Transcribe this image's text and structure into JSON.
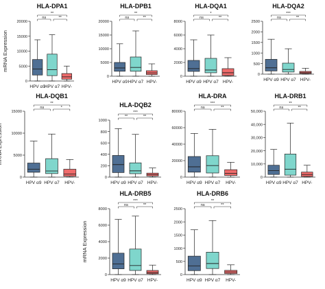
{
  "figure": {
    "y_axis_label": "mRNA Expression",
    "categories": [
      "HPV α9",
      "HPV α7",
      "HPV-"
    ],
    "colors": {
      "HPV α9": "#4f6f94",
      "HPV α7": "#7fd6cc",
      "HPV-": "#ef6b6b"
    }
  },
  "chart_data": [
    {
      "type": "box",
      "title": "HLA-DPA1",
      "ylabel": "mRNA Expression",
      "ylim": [
        0,
        20000
      ],
      "yticks": [
        "0",
        "5000",
        "10000",
        "15000",
        "20000"
      ],
      "series": [
        {
          "name": "HPV α9",
          "min": 0,
          "q1": 2000,
          "median": 4000,
          "q3": 7200,
          "max": 13800
        },
        {
          "name": "HPV α7",
          "min": 0,
          "q1": 1800,
          "median": 3800,
          "q3": 9000,
          "max": 15500
        },
        {
          "name": "HPV-",
          "min": 0,
          "q1": 600,
          "median": 1400,
          "q3": 2500,
          "max": 5000
        }
      ],
      "significance": [
        {
          "from": 0,
          "to": 1,
          "label": "ns"
        },
        {
          "from": 1,
          "to": 2,
          "label": "**"
        },
        {
          "from": 0,
          "to": 2,
          "label": "**"
        }
      ]
    },
    {
      "type": "box",
      "title": "HLA-DPB1",
      "ylim": [
        0,
        20000
      ],
      "yticks": [
        "0",
        "5000",
        "10000",
        "15000",
        "20000"
      ],
      "series": [
        {
          "name": "HPV α9",
          "min": 0,
          "q1": 1800,
          "median": 3000,
          "q3": 5000,
          "max": 11800
        },
        {
          "name": "HPV α7",
          "min": 0,
          "q1": 1800,
          "median": 3200,
          "q3": 7000,
          "max": 16500
        },
        {
          "name": "HPV-",
          "min": 0,
          "q1": 600,
          "median": 1200,
          "q3": 2000,
          "max": 4500
        }
      ],
      "significance": [
        {
          "from": 0,
          "to": 1,
          "label": "ns"
        },
        {
          "from": 1,
          "to": 2,
          "label": "**"
        },
        {
          "from": 0,
          "to": 2,
          "label": "**"
        }
      ]
    },
    {
      "type": "box",
      "title": "HLA-DQA1",
      "ylim": [
        0,
        8000
      ],
      "yticks": [
        "0",
        "2000",
        "4000",
        "6000",
        "8000"
      ],
      "series": [
        {
          "name": "HPV α9",
          "min": 0,
          "q1": 700,
          "median": 1100,
          "q3": 2300,
          "max": 5300
        },
        {
          "name": "HPV α7",
          "min": 0,
          "q1": 500,
          "median": 900,
          "q3": 2600,
          "max": 6000
        },
        {
          "name": "HPV-",
          "min": 0,
          "q1": 100,
          "median": 500,
          "q3": 1100,
          "max": 2700
        }
      ],
      "significance": [
        {
          "from": 0,
          "to": 1,
          "label": "ns"
        },
        {
          "from": 1,
          "to": 2,
          "label": "**"
        },
        {
          "from": 0,
          "to": 2,
          "label": "*"
        }
      ]
    },
    {
      "type": "box",
      "title": "HLA-DQA2",
      "ylim": [
        0,
        2500
      ],
      "yticks": [
        "0",
        "500",
        "1000",
        "1500",
        "2000",
        "2500"
      ],
      "series": [
        {
          "name": "HPV α9",
          "min": 0,
          "q1": 150,
          "median": 300,
          "q3": 700,
          "max": 1650
        },
        {
          "name": "HPV α7",
          "min": 0,
          "q1": 100,
          "median": 220,
          "q3": 520,
          "max": 1200
        },
        {
          "name": "HPV-",
          "min": 0,
          "q1": 30,
          "median": 70,
          "q3": 130,
          "max": 280
        }
      ],
      "significance": [
        {
          "from": 0,
          "to": 1,
          "label": "ns"
        },
        {
          "from": 1,
          "to": 2,
          "label": "**"
        },
        {
          "from": 0,
          "to": 2,
          "label": "***"
        }
      ]
    },
    {
      "type": "box",
      "title": "HLA-DQB1",
      "ylabel": "mRNA Expression",
      "ylim": [
        0,
        15000
      ],
      "yticks": [
        "0",
        "5000",
        "10000",
        "15000"
      ],
      "series": [
        {
          "name": "HPV α9",
          "min": 0,
          "q1": 1100,
          "median": 1800,
          "q3": 3200,
          "max": 8200
        },
        {
          "name": "HPV α7",
          "min": 0,
          "q1": 800,
          "median": 1400,
          "q3": 4200,
          "max": 9800
        },
        {
          "name": "HPV-",
          "min": 0,
          "q1": 200,
          "median": 700,
          "q3": 1800,
          "max": 4000
        }
      ],
      "significance": [
        {
          "from": 0,
          "to": 1,
          "label": "ns"
        },
        {
          "from": 1,
          "to": 2,
          "label": "*"
        },
        {
          "from": 0,
          "to": 2,
          "label": "**"
        }
      ]
    },
    {
      "type": "box",
      "title": "HLA-DQB2",
      "ylim": [
        0,
        1000
      ],
      "yticks": [
        "0",
        "200",
        "400",
        "600",
        "800",
        "1000"
      ],
      "series": [
        {
          "name": "HPV α9",
          "min": 0,
          "q1": 80,
          "median": 220,
          "q3": 380,
          "max": 850
        },
        {
          "name": "HPV α7",
          "min": 0,
          "q1": 60,
          "median": 110,
          "q3": 250,
          "max": 750
        },
        {
          "name": "HPV-",
          "min": 0,
          "q1": 20,
          "median": 45,
          "q3": 70,
          "max": 160
        }
      ],
      "significance": [
        {
          "from": 0,
          "to": 1,
          "label": "**"
        },
        {
          "from": 1,
          "to": 2,
          "label": "**"
        },
        {
          "from": 0,
          "to": 2,
          "label": "***"
        }
      ]
    },
    {
      "type": "box",
      "title": "HLA-DRA",
      "ylim": [
        0,
        80000
      ],
      "yticks": [
        "0",
        "20000",
        "40000",
        "60000",
        "80000"
      ],
      "series": [
        {
          "name": "HPV α9",
          "min": 0,
          "q1": 6000,
          "median": 12500,
          "q3": 25000,
          "max": 53000
        },
        {
          "name": "HPV α7",
          "min": 0,
          "q1": 5000,
          "median": 14000,
          "q3": 26000,
          "max": 58000
        },
        {
          "name": "HPV-",
          "min": 0,
          "q1": 2000,
          "median": 4500,
          "q3": 9000,
          "max": 18000
        }
      ],
      "significance": [
        {
          "from": 0,
          "to": 1,
          "label": "ns"
        },
        {
          "from": 1,
          "to": 2,
          "label": "**"
        },
        {
          "from": 0,
          "to": 2,
          "label": "***"
        }
      ]
    },
    {
      "type": "box",
      "title": "HLA-DRB1",
      "ylim": [
        0,
        50000
      ],
      "yticks": [
        "0",
        "10,000",
        "20,000",
        "30,000",
        "40,000",
        "50,000"
      ],
      "series": [
        {
          "name": "HPV α9",
          "min": 0,
          "q1": 2000,
          "median": 5000,
          "q3": 9000,
          "max": 21000
        },
        {
          "name": "HPV α7",
          "min": 0,
          "q1": 1500,
          "median": 6000,
          "q3": 17500,
          "max": 41000
        },
        {
          "name": "HPV-",
          "min": 0,
          "q1": 500,
          "median": 2000,
          "q3": 3800,
          "max": 9000
        }
      ],
      "significance": [
        {
          "from": 0,
          "to": 1,
          "label": "ns"
        },
        {
          "from": 1,
          "to": 2,
          "label": "**"
        },
        {
          "from": 0,
          "to": 2,
          "label": "**"
        }
      ]
    },
    {
      "type": "box",
      "title": "HLA-DRB5",
      "ylabel": "mRNA Expression",
      "ylim": [
        0,
        8000
      ],
      "yticks": [
        "0",
        "2000",
        "4000",
        "6000",
        "8000"
      ],
      "series": [
        {
          "name": "HPV α9",
          "min": 0,
          "q1": 700,
          "median": 1300,
          "q3": 2600,
          "max": 6700
        },
        {
          "name": "HPV α7",
          "min": 0,
          "q1": 500,
          "median": 1100,
          "q3": 3100,
          "max": 7100
        },
        {
          "name": "HPV-",
          "min": 0,
          "q1": 100,
          "median": 250,
          "q3": 500,
          "max": 1150
        }
      ],
      "significance": [
        {
          "from": 0,
          "to": 1,
          "label": "ns"
        },
        {
          "from": 1,
          "to": 2,
          "label": "**"
        },
        {
          "from": 0,
          "to": 2,
          "label": "***"
        }
      ]
    },
    {
      "type": "box",
      "title": "HLA-DRB6",
      "ylim": [
        0,
        2500
      ],
      "yticks": [
        "0",
        "500",
        "1000",
        "1500",
        "2000",
        "2500"
      ],
      "series": [
        {
          "name": "HPV α9",
          "min": 0,
          "q1": 150,
          "median": 330,
          "q3": 700,
          "max": 1700
        },
        {
          "name": "HPV α7",
          "min": 0,
          "q1": 230,
          "median": 420,
          "q3": 850,
          "max": 2050
        },
        {
          "name": "HPV-",
          "min": 0,
          "q1": 40,
          "median": 100,
          "q3": 160,
          "max": 370
        }
      ],
      "significance": [
        {
          "from": 0,
          "to": 1,
          "label": "ns"
        },
        {
          "from": 1,
          "to": 2,
          "label": "**"
        },
        {
          "from": 0,
          "to": 2,
          "label": "**"
        }
      ]
    }
  ]
}
